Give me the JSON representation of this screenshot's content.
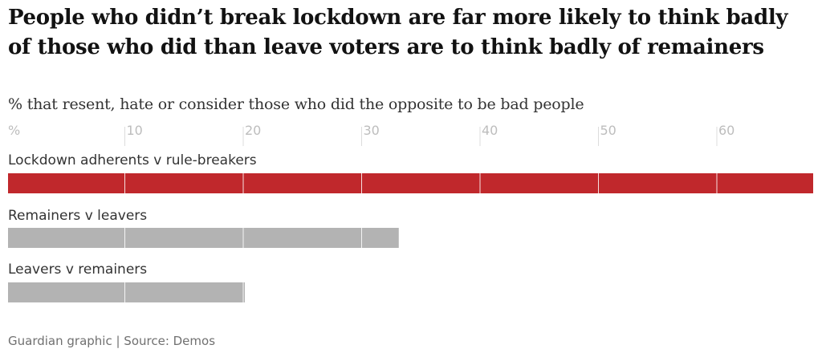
{
  "title": "People who didn’t break lockdown are far more likely to think badly of those who did than leave voters are to think badly of remainers",
  "subtitle": "% that resent, hate or consider those who did the opposite to be bad people",
  "source": "Guardian graphic | Source: Demos",
  "colors": {
    "highlight": "#c0282c",
    "neutral": "#b3b3b3",
    "tick_text": "#bdbdbd"
  },
  "chart_data": {
    "type": "bar",
    "orientation": "horizontal",
    "categories": [
      "Lockdown adherents v rule-breakers",
      "Remainers v leavers",
      "Leavers v remainers"
    ],
    "values": [
      68,
      33,
      20
    ],
    "bar_colors": [
      "#c0282c",
      "#b3b3b3",
      "#b3b3b3"
    ],
    "xlim": [
      0,
      68
    ],
    "xticks": [
      0,
      10,
      20,
      30,
      40,
      50,
      60
    ],
    "xtick_labels": [
      "%",
      "10",
      "20",
      "30",
      "40",
      "50",
      "60"
    ],
    "grid": true
  }
}
